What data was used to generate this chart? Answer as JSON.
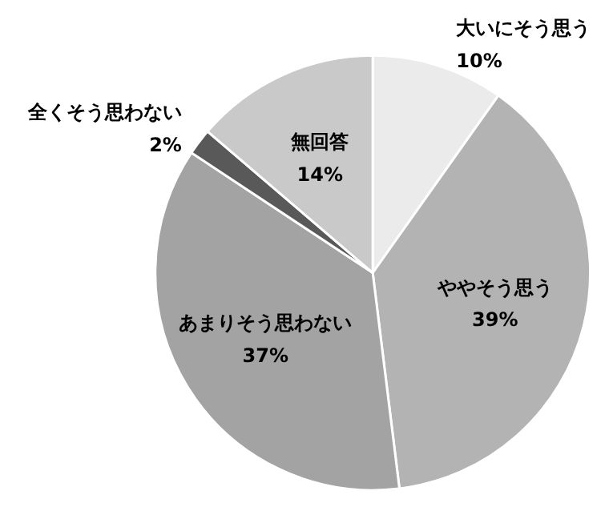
{
  "chart_data": {
    "type": "pie",
    "categories": [
      "大いにそう思う",
      "ややそう思う",
      "あまりそう思わない",
      "全くそう思わない",
      "無回答"
    ],
    "values": [
      10,
      39,
      37,
      2,
      14
    ],
    "value_labels": [
      "10%",
      "39%",
      "37%",
      "2%",
      "14%"
    ],
    "colors": [
      "#ebebeb",
      "#b3b3b3",
      "#a3a3a3",
      "#595959",
      "#c9c9c9"
    ]
  }
}
